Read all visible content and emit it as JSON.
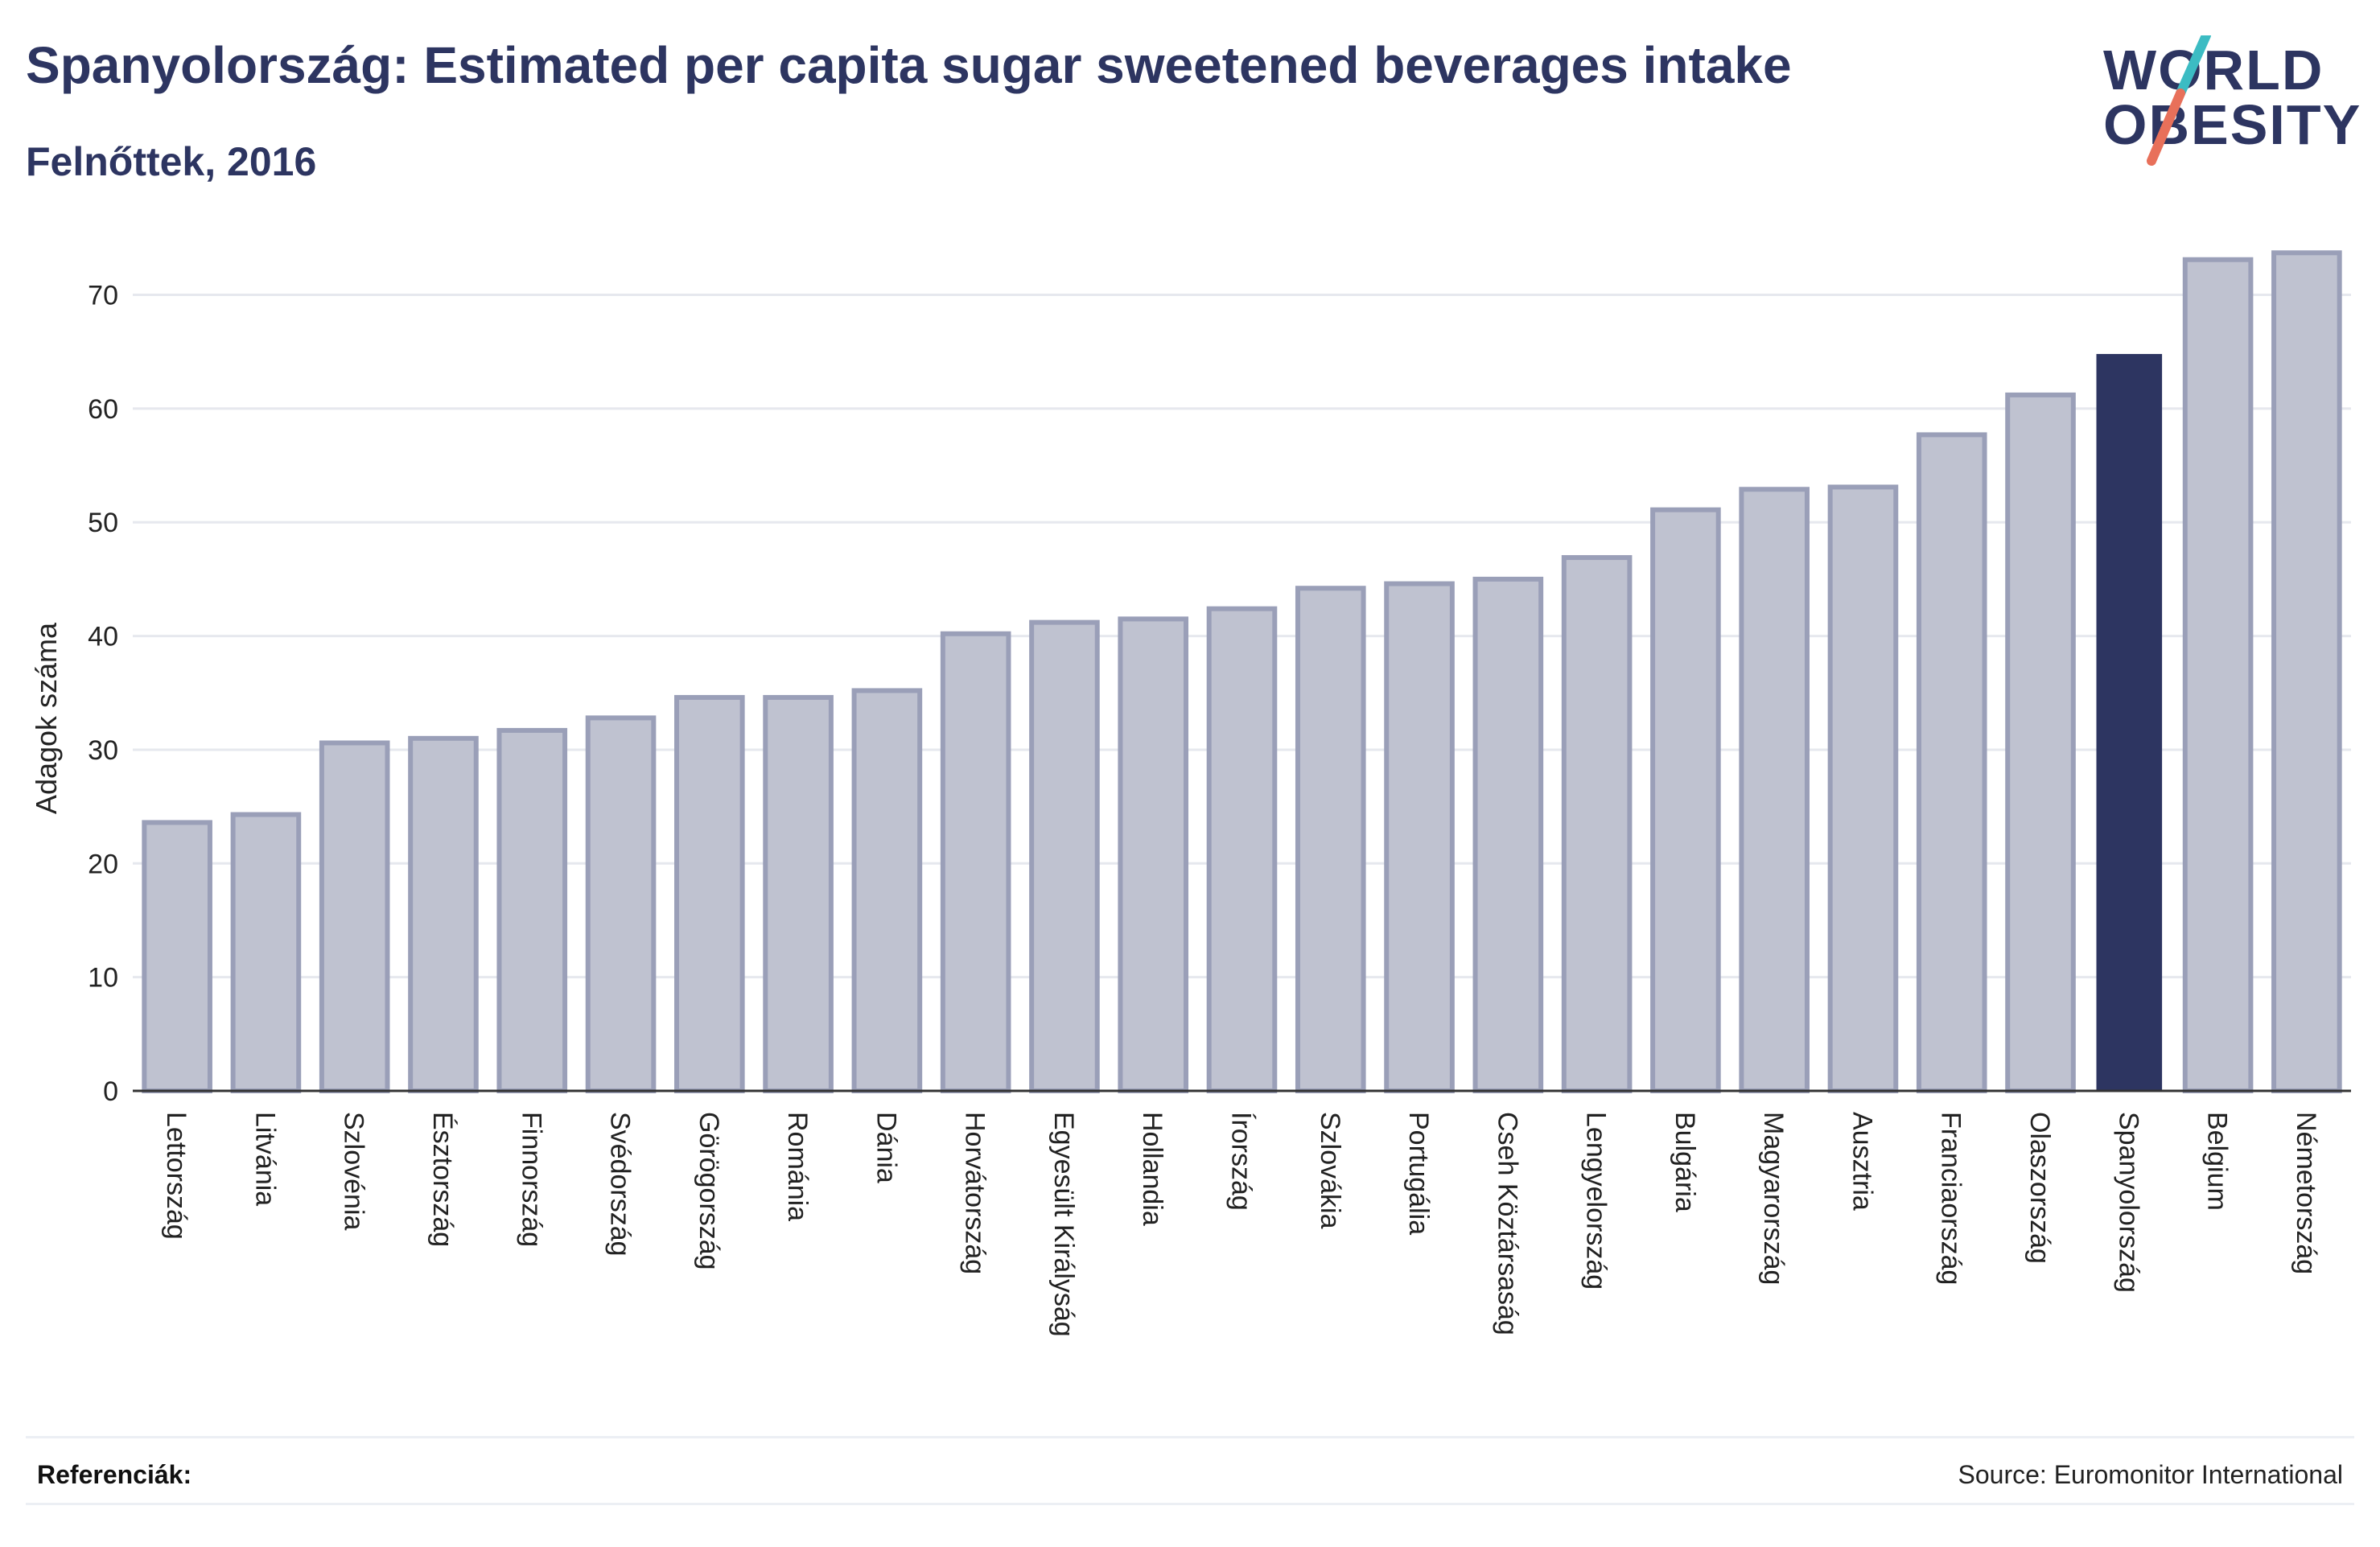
{
  "header": {
    "title": "Spanyolország: Estimated per capita sugar sweetened beverages intake",
    "subtitle": "Felnőttek, 2016"
  },
  "logo": {
    "line1": "WORLD",
    "line2": "OBESITY",
    "accent_colors": [
      "#3cbcc3",
      "#e8705a"
    ]
  },
  "footer": {
    "references_label": "Referenciák:",
    "source": "Source: Euromonitor International"
  },
  "colors": {
    "bar": "#bfc2d0",
    "bar_border": "#9a9fb8",
    "highlight": "#2d3561",
    "grid": "#e6e8ee",
    "axis": "#333333"
  },
  "chart_data": {
    "type": "bar",
    "title": "Spanyolország: Estimated per capita sugar sweetened beverages intake",
    "subtitle": "Felnőttek, 2016",
    "xlabel": "",
    "ylabel": "Adagok száma",
    "ylim": [
      0,
      74
    ],
    "yticks": [
      0,
      10,
      20,
      30,
      40,
      50,
      60,
      70
    ],
    "grid": true,
    "highlight": "Spanyolország",
    "categories": [
      "Lettország",
      "Litvánia",
      "Szlovénia",
      "Észtország",
      "Finnország",
      "Svédország",
      "Görögország",
      "Románia",
      "Dánia",
      "Horvátország",
      "Egyesült Királyság",
      "Hollandia",
      "Írország",
      "Szlovákia",
      "Portugália",
      "Cseh Köztársaság",
      "Lengyelország",
      "Bulgária",
      "Magyarország",
      "Ausztria",
      "Franciaország",
      "Olaszország",
      "Spanyolország",
      "Belgium",
      "Németország"
    ],
    "values": [
      23.6,
      24.3,
      30.6,
      31.0,
      31.7,
      32.8,
      34.6,
      34.6,
      35.2,
      40.2,
      41.2,
      41.5,
      42.4,
      44.2,
      44.6,
      45.0,
      46.9,
      51.1,
      52.9,
      53.1,
      57.7,
      61.2,
      64.8,
      73.1,
      73.7
    ]
  }
}
